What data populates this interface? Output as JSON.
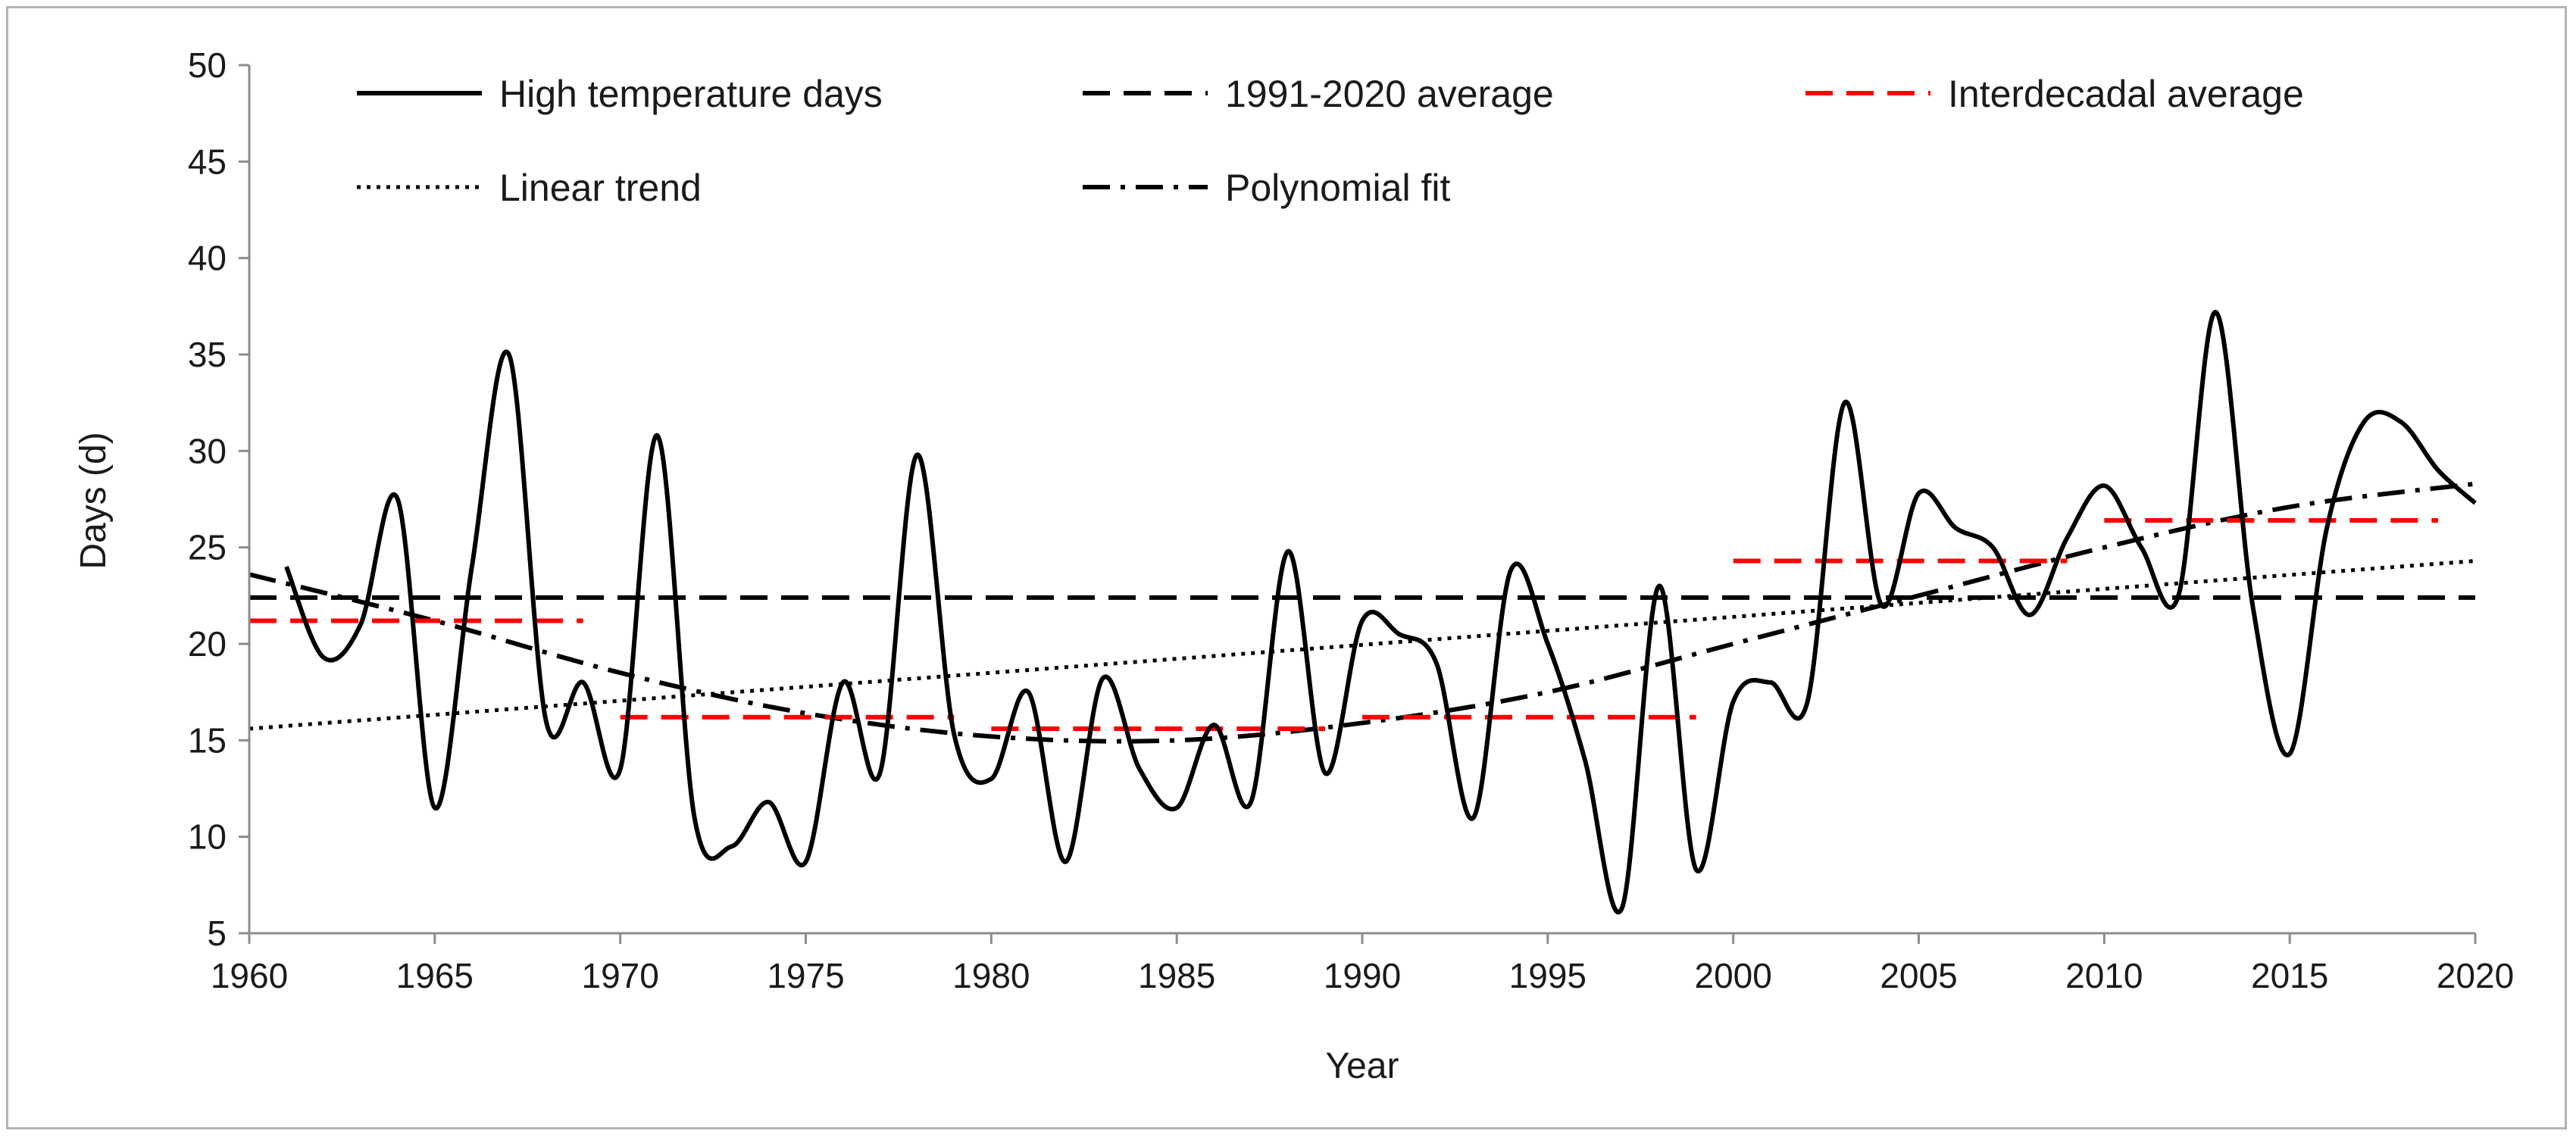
{
  "chart_data": {
    "type": "line",
    "title": "",
    "xlabel": "Year",
    "ylabel": "Days (d)",
    "xlim": [
      1960,
      2020
    ],
    "ylim": [
      5,
      50
    ],
    "xticks": [
      "1960",
      "1965",
      "1970",
      "1975",
      "1980",
      "1985",
      "1990",
      "1995",
      "2000",
      "2005",
      "2010",
      "2015",
      "2020"
    ],
    "yticks": [
      "5",
      "10",
      "15",
      "20",
      "25",
      "30",
      "35",
      "40",
      "45",
      "50"
    ],
    "grid": false,
    "legend_position": "top",
    "legend": {
      "high": "High temperature days",
      "avg1991": "1991-2020 average",
      "inter": "Interdecadal average",
      "linear": "Linear trend",
      "poly": "Polynomial fit"
    },
    "colors": {
      "black": "#000000",
      "red": "#ff0000",
      "axis": "#8c8c8c"
    },
    "series": [
      {
        "name": "High temperature days",
        "style": "solid",
        "x": [
          1961,
          1962,
          1963,
          1964,
          1965,
          1966,
          1967,
          1968,
          1969,
          1970,
          1971,
          1972,
          1973,
          1974,
          1975,
          1976,
          1977,
          1978,
          1979,
          1980,
          1981,
          1982,
          1983,
          1984,
          1985,
          1986,
          1987,
          1988,
          1989,
          1990,
          1991,
          1992,
          1993,
          1994,
          1995,
          1996,
          1997,
          1998,
          1999,
          2000,
          2001,
          2002,
          2003,
          2004,
          2005,
          2006,
          2007,
          2008,
          2009,
          2010,
          2011,
          2012,
          2013,
          2014,
          2015,
          2016,
          2017,
          2018,
          2019,
          2020
        ],
        "values": [
          24,
          19.3,
          21,
          27.5,
          11.5,
          24,
          35,
          16,
          18,
          13.5,
          30.8,
          11,
          9.5,
          11.8,
          8.7,
          18,
          13.3,
          29.8,
          15.3,
          13,
          17.5,
          8.7,
          18.2,
          13.5,
          11.5,
          15.8,
          11.8,
          24.8,
          13.3,
          21.2,
          20.5,
          19,
          11,
          23.8,
          20,
          14,
          6.3,
          23,
          8.3,
          17,
          18,
          17,
          32.5,
          22,
          27.8,
          26,
          25,
          21.5,
          25.5,
          28.2,
          25,
          22.5,
          37.2,
          22,
          14.3,
          26,
          31.5,
          31.5,
          29,
          27.3
        ]
      },
      {
        "name": "1991-2020 average",
        "style": "dashed",
        "x": [
          1960,
          2020
        ],
        "values": [
          22.4,
          22.4
        ]
      },
      {
        "name": "Interdecadal average",
        "style": "dashed-red",
        "segments": [
          {
            "x": [
              1960,
              1969
            ],
            "value": 21.2
          },
          {
            "x": [
              1970,
              1979
            ],
            "value": 16.2
          },
          {
            "x": [
              1980,
              1989
            ],
            "value": 15.6
          },
          {
            "x": [
              1990,
              1999
            ],
            "value": 16.2
          },
          {
            "x": [
              2000,
              2009
            ],
            "value": 24.3
          },
          {
            "x": [
              2010,
              2019
            ],
            "value": 26.4
          }
        ]
      },
      {
        "name": "Linear trend",
        "style": "dotted",
        "x": [
          1960,
          2020
        ],
        "values": [
          15.6,
          24.3
        ]
      },
      {
        "name": "Polynomial fit",
        "style": "dash-dot",
        "x": [
          1960,
          1965,
          1970,
          1975,
          1980,
          1985,
          1990,
          1995,
          2000,
          2005,
          2010,
          2015,
          2020
        ],
        "values": [
          23.6,
          21.2,
          18.5,
          16.4,
          15.2,
          15,
          15.9,
          17.5,
          20,
          22.5,
          25,
          27.1,
          28.3
        ]
      }
    ]
  }
}
